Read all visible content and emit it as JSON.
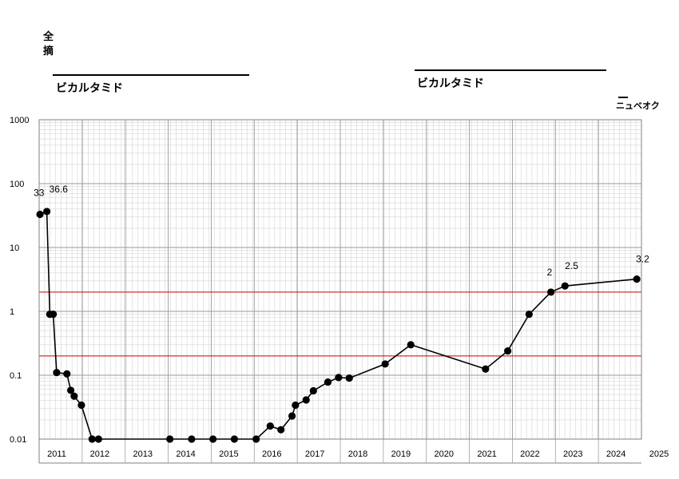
{
  "header": {
    "side_label_line1": "全",
    "side_label_line2": "摘",
    "drug_1": "ビカルタミド",
    "drug_2": "ビカルタミド",
    "extra_label": "ニュベオク"
  },
  "chart_data": {
    "type": "line",
    "scale": "log",
    "ylim": [
      0.01,
      1000
    ],
    "yticks": [
      "1000",
      "100",
      "10",
      "1",
      "0.1",
      "0.01"
    ],
    "xlim": [
      2010.9,
      2025.0
    ],
    "xticks": [
      "2011",
      "2012",
      "2013",
      "2014",
      "2015",
      "2016",
      "2017",
      "2018",
      "2019",
      "2020",
      "2021",
      "2022",
      "2023",
      "2024",
      "2025"
    ],
    "reference_lines": [
      2,
      0.2
    ],
    "reference_color": "#cc0000",
    "series": [
      {
        "values": [
          {
            "x": 2010.92,
            "y": 33
          },
          {
            "x": 2011.08,
            "y": 36.6
          },
          {
            "x": 2011.15,
            "y": 0.9
          },
          {
            "x": 2011.23,
            "y": 0.9
          },
          {
            "x": 2011.31,
            "y": 0.11
          },
          {
            "x": 2011.55,
            "y": 0.105
          },
          {
            "x": 2011.64,
            "y": 0.058
          },
          {
            "x": 2011.72,
            "y": 0.047
          },
          {
            "x": 2011.89,
            "y": 0.034
          },
          {
            "x": 2012.14,
            "y": 0.01
          },
          {
            "x": 2012.29,
            "y": 0.01
          },
          {
            "x": 2013.96,
            "y": 0.01
          },
          {
            "x": 2014.47,
            "y": 0.01
          },
          {
            "x": 2014.97,
            "y": 0.01
          },
          {
            "x": 2015.47,
            "y": 0.01
          },
          {
            "x": 2015.98,
            "y": 0.01
          },
          {
            "x": 2016.31,
            "y": 0.016
          },
          {
            "x": 2016.56,
            "y": 0.014
          },
          {
            "x": 2016.82,
            "y": 0.023
          },
          {
            "x": 2016.9,
            "y": 0.034
          },
          {
            "x": 2017.15,
            "y": 0.041
          },
          {
            "x": 2017.32,
            "y": 0.057
          },
          {
            "x": 2017.66,
            "y": 0.078
          },
          {
            "x": 2017.91,
            "y": 0.092
          },
          {
            "x": 2018.16,
            "y": 0.09
          },
          {
            "x": 2019.0,
            "y": 0.15
          },
          {
            "x": 2019.6,
            "y": 0.3
          },
          {
            "x": 2021.35,
            "y": 0.125
          },
          {
            "x": 2021.87,
            "y": 0.24
          },
          {
            "x": 2022.37,
            "y": 0.9
          },
          {
            "x": 2022.88,
            "y": 2
          },
          {
            "x": 2023.21,
            "y": 2.5
          },
          {
            "x": 2024.89,
            "y": 3.2
          }
        ]
      }
    ],
    "data_labels": [
      {
        "x": 2010.92,
        "y": 33,
        "text": "33"
      },
      {
        "x": 2011.08,
        "y": 36.6,
        "text": "36.6"
      },
      {
        "x": 2022.88,
        "y": 2,
        "text": "2"
      },
      {
        "x": 2023.21,
        "y": 2.5,
        "text": "2.5"
      },
      {
        "x": 2024.89,
        "y": 3.2,
        "text": "3.2"
      }
    ]
  }
}
